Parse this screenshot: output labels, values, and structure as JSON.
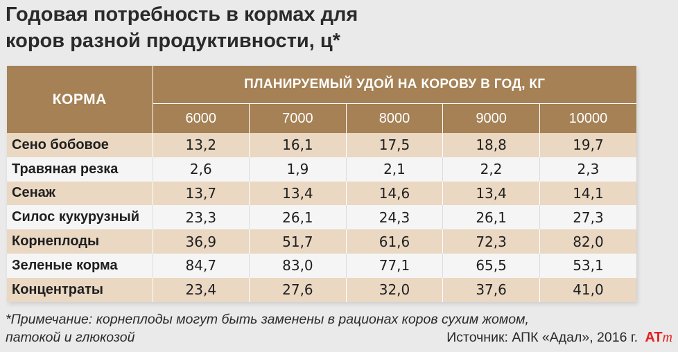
{
  "title_lines": [
    "Годовая потребность в кормах для",
    "коров разной продуктивности, ц*"
  ],
  "chart_data": {
    "type": "table",
    "row_header_label": "КОРМА",
    "column_group_label": "ПЛАНИРУЕМЫЙ УДОЙ НА КОРОВУ В ГОД, КГ",
    "columns": [
      "6000",
      "7000",
      "8000",
      "9000",
      "10000"
    ],
    "rows": [
      {
        "label": "Сено бобовое",
        "values": [
          "13,2",
          "16,1",
          "17,5",
          "18,8",
          "19,7"
        ]
      },
      {
        "label": "Травяная резка",
        "values": [
          "2,6",
          "1,9",
          "2,1",
          "2,2",
          "2,3"
        ]
      },
      {
        "label": "Сенаж",
        "values": [
          "13,7",
          "13,4",
          "14,6",
          "13,4",
          "14,1"
        ]
      },
      {
        "label": "Силос кукурузный",
        "values": [
          "23,3",
          "26,1",
          "24,3",
          "26,1",
          "27,3"
        ]
      },
      {
        "label": "Корнеплоды",
        "values": [
          "36,9",
          "51,7",
          "61,6",
          "72,3",
          "82,0"
        ]
      },
      {
        "label": "Зеленые корма",
        "values": [
          "84,7",
          "83,0",
          "77,1",
          "65,5",
          "53,1"
        ]
      },
      {
        "label": "Концентраты",
        "values": [
          "23,4",
          "27,6",
          "32,0",
          "37,6",
          "41,0"
        ]
      }
    ]
  },
  "note_lines": [
    "*Примечание: корнеплоды могут быть заменены в рационах коров сухим жомом,",
    "патокой и глюкозой"
  ],
  "source": "Источник: АПК «Адал», 2016 г.",
  "logo": {
    "letters": "AT",
    "letter_m": "m",
    "color": "#e32020"
  },
  "colors": {
    "header_brown": "#a58155",
    "row_tan": "#ead8c3",
    "row_light": "#f5f5f5",
    "background": "#eaeaea"
  }
}
